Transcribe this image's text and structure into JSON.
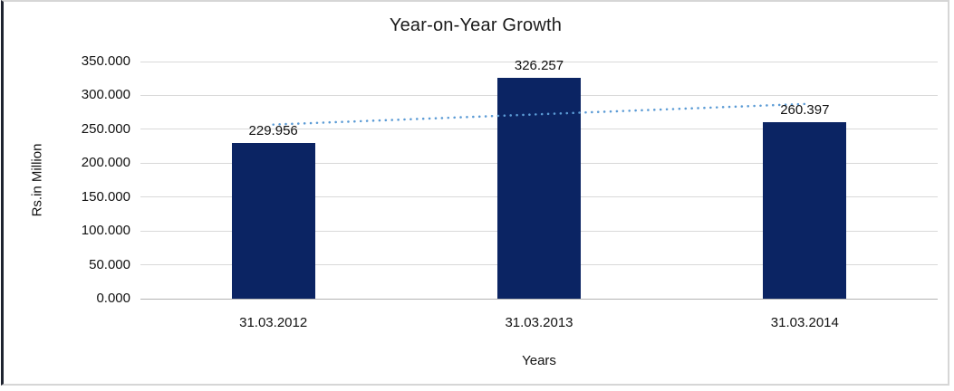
{
  "chart_data": {
    "type": "bar",
    "title": "Year-on-Year Growth",
    "xlabel": "Years",
    "ylabel": "Rs.in Million",
    "categories": [
      "31.03.2012",
      "31.03.2013",
      "31.03.2014"
    ],
    "values": [
      229.956,
      326.257,
      260.397
    ],
    "value_labels": [
      "229.956",
      "326.257",
      "260.397"
    ],
    "y_ticks": [
      {
        "label": "350.000",
        "value": 350
      },
      {
        "label": "300.000",
        "value": 300
      },
      {
        "label": "250.000",
        "value": 250
      },
      {
        "label": "200.000",
        "value": 200
      },
      {
        "label": "150.000",
        "value": 150
      },
      {
        "label": "100.000",
        "value": 100
      },
      {
        "label": "50.000",
        "value": 50
      },
      {
        "label": "0.000",
        "value": 0
      }
    ],
    "ylim": [
      0,
      350
    ],
    "grid": true,
    "legend": "none",
    "bar_color": "#0b2463",
    "gridline_color": "#d9d9d9",
    "axis_line_color": "#b3b3b3",
    "frame_border_color": "#d6d6d6",
    "frame_left_border_color": "#1f2430",
    "trendline": {
      "type": "linear",
      "style": "dotted",
      "color": "#5b9bd5",
      "endpoint_values": [
        256.98,
        287.42
      ]
    }
  }
}
